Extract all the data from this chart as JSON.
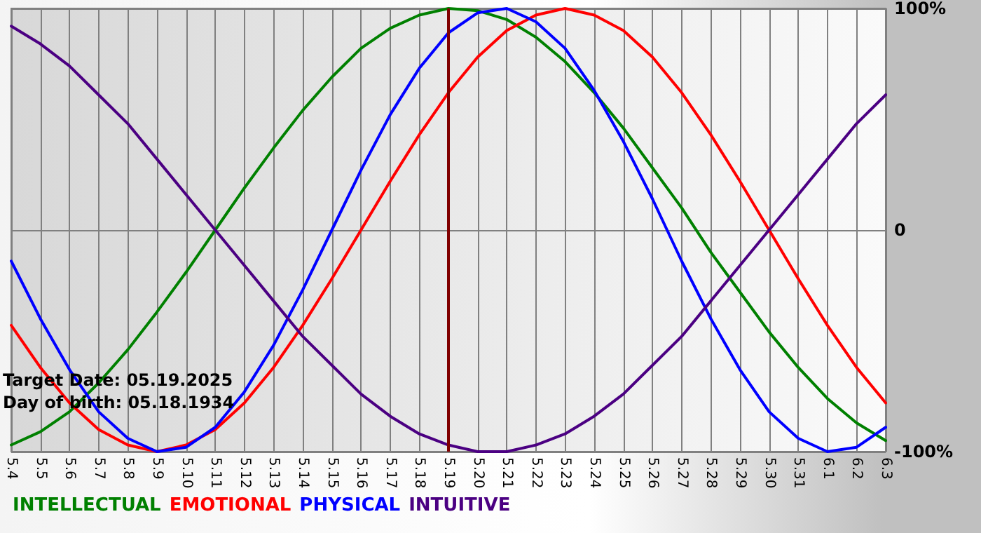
{
  "chart_data": {
    "type": "line",
    "categories": [
      "5.4",
      "5.5",
      "5.6",
      "5.7",
      "5.8",
      "5.9",
      "5.10",
      "5.11",
      "5.12",
      "5.13",
      "5.14",
      "5.15",
      "5.16",
      "5.17",
      "5.18",
      "5.19",
      "5.20",
      "5.21",
      "5.22",
      "5.23",
      "5.24",
      "5.25",
      "5.26",
      "5.27",
      "5.28",
      "5.29",
      "5.30",
      "5.31",
      "6.1",
      "6.2",
      "6.3"
    ],
    "series": [
      {
        "name": "INTELLECTUAL",
        "color": "#008000",
        "values": [
          -97,
          -91,
          -82,
          -69,
          -54,
          -37,
          -19,
          0,
          19,
          37,
          54,
          69,
          82,
          91,
          97,
          100,
          99,
          95,
          87,
          76,
          62,
          46,
          28,
          10,
          -10,
          -28,
          -46,
          -62,
          -76,
          -87,
          -95
        ]
      },
      {
        "name": "EMOTIONAL",
        "color": "#ff0000",
        "values": [
          -43,
          -62,
          -78,
          -90,
          -97,
          -100,
          -97,
          -90,
          -78,
          -62,
          -43,
          -22,
          0,
          22,
          43,
          62,
          78,
          90,
          97,
          100,
          97,
          90,
          78,
          62,
          43,
          22,
          0,
          -22,
          -43,
          -62,
          -78
        ]
      },
      {
        "name": "PHYSICAL",
        "color": "#0000ff",
        "values": [
          -14,
          -40,
          -63,
          -82,
          -94,
          -100,
          -98,
          -89,
          -73,
          -52,
          -27,
          0,
          27,
          52,
          73,
          89,
          98,
          100,
          94,
          82,
          63,
          40,
          14,
          -14,
          -40,
          -63,
          -82,
          -94,
          -100,
          -98,
          -89
        ]
      },
      {
        "name": "INTUITIVE",
        "color": "#4b0082",
        "values": [
          92,
          84,
          74,
          61,
          48,
          32,
          16,
          0,
          -16,
          -32,
          -48,
          -61,
          -74,
          -84,
          -92,
          -97,
          -100,
          -100,
          -97,
          -92,
          -84,
          -74,
          -61,
          -48,
          -32,
          -16,
          0,
          16,
          32,
          48,
          61
        ]
      }
    ],
    "ylim": [
      -100,
      100
    ],
    "yticks": [
      {
        "value": -100,
        "label": "-100%"
      },
      {
        "value": 0,
        "label": "0"
      },
      {
        "value": 100,
        "label": "100%"
      }
    ],
    "ref_lines": [
      {
        "axis": "x",
        "value": "5.19",
        "color": "#800000"
      }
    ],
    "annotations": [
      "Target Date: 05.19.2025",
      "Day of birth: 05.18.1934"
    ],
    "grid": true,
    "legend": "bottom left",
    "marker": "none",
    "line_style": "solid"
  }
}
